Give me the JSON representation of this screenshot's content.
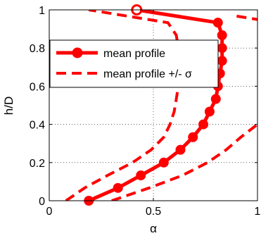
{
  "chart_data": {
    "type": "line",
    "xlabel": "α",
    "ylabel": "h/D",
    "xlim": [
      0,
      1
    ],
    "ylim": [
      0,
      1
    ],
    "x_ticks": [
      {
        "value": 0,
        "label": "0"
      },
      {
        "value": 0.5,
        "label": "0.5"
      },
      {
        "value": 1,
        "label": "1"
      }
    ],
    "y_ticks": [
      {
        "value": 0,
        "label": "0"
      },
      {
        "value": 0.2,
        "label": "0.2"
      },
      {
        "value": 0.4,
        "label": "0.4"
      },
      {
        "value": 0.6,
        "label": "0.6"
      },
      {
        "value": 0.8,
        "label": "0.8"
      },
      {
        "value": 1,
        "label": "1"
      }
    ],
    "grid": true,
    "legend_position": "top-left",
    "series": [
      {
        "name": "mean profile",
        "style": "solid-with-markers",
        "color": "#ff0000",
        "points": [
          [
            0.19,
            0.0
          ],
          [
            0.33,
            0.067
          ],
          [
            0.44,
            0.133
          ],
          [
            0.55,
            0.2
          ],
          [
            0.63,
            0.267
          ],
          [
            0.69,
            0.333
          ],
          [
            0.74,
            0.4
          ],
          [
            0.77,
            0.467
          ],
          [
            0.8,
            0.533
          ],
          [
            0.81,
            0.6
          ],
          [
            0.82,
            0.667
          ],
          [
            0.83,
            0.733
          ],
          [
            0.83,
            0.8
          ],
          [
            0.83,
            0.867
          ],
          [
            0.81,
            0.933
          ],
          [
            0.42,
            1.0
          ]
        ]
      },
      {
        "name": "mean profile +/- σ",
        "style": "dashed",
        "color": "#ff0000",
        "points": [
          [
            0.08,
            0.0
          ],
          [
            0.17,
            0.067
          ],
          [
            0.28,
            0.133
          ],
          [
            0.4,
            0.2
          ],
          [
            0.49,
            0.267
          ],
          [
            0.55,
            0.333
          ],
          [
            0.58,
            0.4
          ],
          [
            0.6,
            0.467
          ],
          [
            0.61,
            0.533
          ],
          [
            0.62,
            0.6
          ],
          [
            0.62,
            0.667
          ],
          [
            0.62,
            0.733
          ],
          [
            0.62,
            0.8
          ],
          [
            0.61,
            0.867
          ],
          [
            0.57,
            0.933
          ],
          [
            0.19,
            1.0
          ]
        ]
      },
      {
        "name": "",
        "style": "dashed",
        "color": "#ff0000",
        "points": [
          [
            0.3,
            0.0
          ],
          [
            0.48,
            0.067
          ],
          [
            0.64,
            0.133
          ],
          [
            0.76,
            0.2
          ],
          [
            0.85,
            0.267
          ],
          [
            0.92,
            0.333
          ],
          [
            1.0,
            0.4
          ]
        ]
      },
      {
        "name": "",
        "style": "dashed",
        "color": "#ff0000",
        "points": [
          [
            0.9,
            0.967
          ],
          [
            1.0,
            0.95
          ]
        ]
      }
    ],
    "legend": [
      {
        "label": "mean profile",
        "style": "solid-with-markers"
      },
      {
        "label": "mean profile +/- σ",
        "style": "dashed"
      }
    ]
  }
}
